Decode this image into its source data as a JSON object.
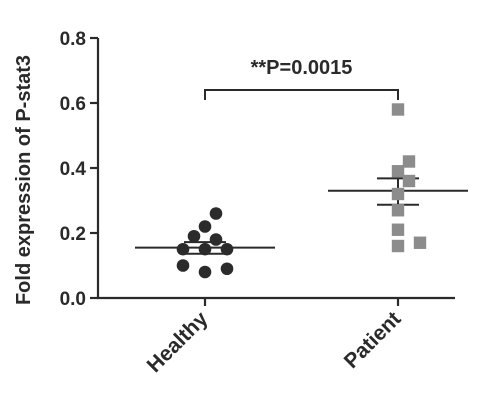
{
  "chart_data": {
    "type": "scatter",
    "ylabel": "Fold expression of P-stat3",
    "ylim": [
      0,
      0.8
    ],
    "yticks": [
      0.0,
      0.2,
      0.4,
      0.6,
      0.8
    ],
    "yticklabels": [
      "0.0",
      "0.2",
      "0.4",
      "0.6",
      "0.8"
    ],
    "categories": [
      "Healthy",
      "Patient"
    ],
    "series": [
      {
        "category": "Healthy",
        "marker": "circle",
        "color": "#2b2b2b",
        "values": [
          0.26,
          0.22,
          0.19,
          0.18,
          0.15,
          0.15,
          0.15,
          0.1,
          0.09,
          0.08
        ],
        "mean": 0.155,
        "sem_upper": 0.172,
        "sem_lower": 0.136
      },
      {
        "category": "Patient",
        "marker": "square",
        "color": "#8c8c8c",
        "values": [
          0.58,
          0.42,
          0.39,
          0.36,
          0.32,
          0.27,
          0.21,
          0.17,
          0.16
        ],
        "mean": 0.33,
        "sem_upper": 0.368,
        "sem_lower": 0.287
      }
    ],
    "annotation": {
      "text": "**P=0.0015",
      "bracket_y": 0.64
    }
  }
}
